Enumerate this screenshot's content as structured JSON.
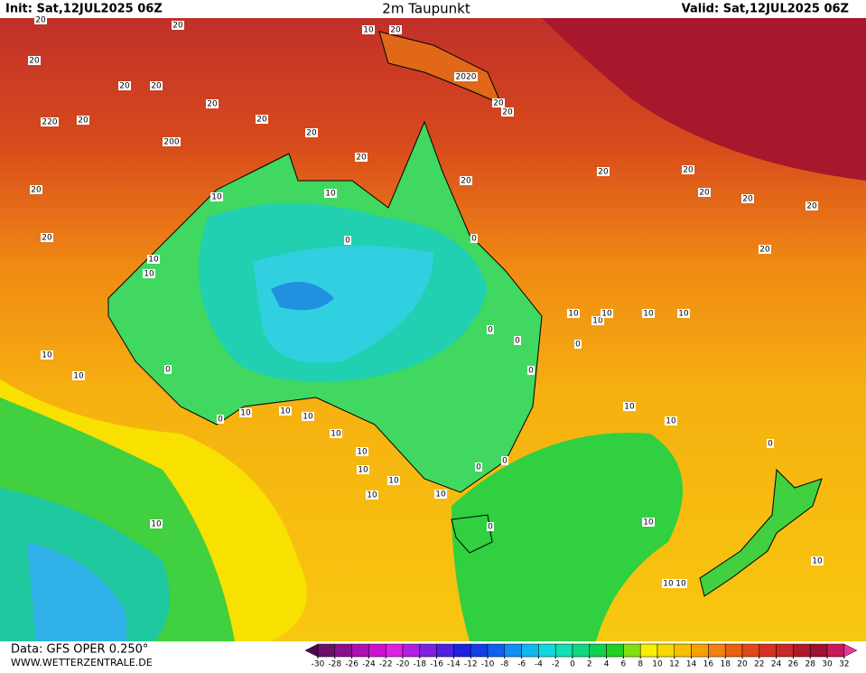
{
  "header": {
    "init": "Init: Sat,12JUL2025 06Z",
    "title": "2m Taupunkt",
    "valid": "Valid: Sat,12JUL2025 06Z"
  },
  "footer": {
    "source": "Data: GFS OPER 0.250°",
    "site": "WWW.WETTERZENTRALE.DE"
  },
  "colorbar": {
    "ticks": [
      -30,
      -28,
      -26,
      -24,
      -22,
      -20,
      -18,
      -16,
      -14,
      -12,
      -10,
      -8,
      -6,
      -4,
      -2,
      0,
      2,
      4,
      6,
      8,
      10,
      12,
      14,
      16,
      18,
      20,
      22,
      24,
      26,
      28,
      30,
      32
    ],
    "colors": [
      "#4a0a4a",
      "#6a106a",
      "#8a108a",
      "#b010b0",
      "#d010d0",
      "#e020e0",
      "#b020e0",
      "#8020e0",
      "#5020e0",
      "#2020e0",
      "#1040e8",
      "#1060f0",
      "#1090f0",
      "#10b8f0",
      "#10d8e0",
      "#10e0b0",
      "#10d880",
      "#10d050",
      "#20d020",
      "#80e010",
      "#f8f000",
      "#f8d800",
      "#f8c000",
      "#f8a000",
      "#f08010",
      "#e86010",
      "#e04818",
      "#d83020",
      "#c82828",
      "#b01828",
      "#a01030",
      "#c81858",
      "#e83898"
    ]
  },
  "contour_labels": [
    "20",
    "20",
    "20",
    "10",
    "20",
    "20",
    "20",
    "20",
    "20",
    "20",
    "220",
    "20",
    "200",
    "20",
    "20",
    "20",
    "20",
    "20",
    "20",
    "20",
    "20",
    "20",
    "2020",
    "20",
    "20",
    "20",
    "10",
    "10",
    "0",
    "0",
    "0",
    "0",
    "0",
    "0",
    "10",
    "10",
    "10",
    "10",
    "10",
    "10",
    "10",
    "10",
    "10",
    "0",
    "0",
    "10",
    "10",
    "10",
    "10",
    "10",
    "10",
    "10",
    "10",
    "10",
    "10",
    "10",
    "0",
    "0",
    "0",
    "0",
    "10",
    "10",
    "10",
    "10",
    "10"
  ]
}
